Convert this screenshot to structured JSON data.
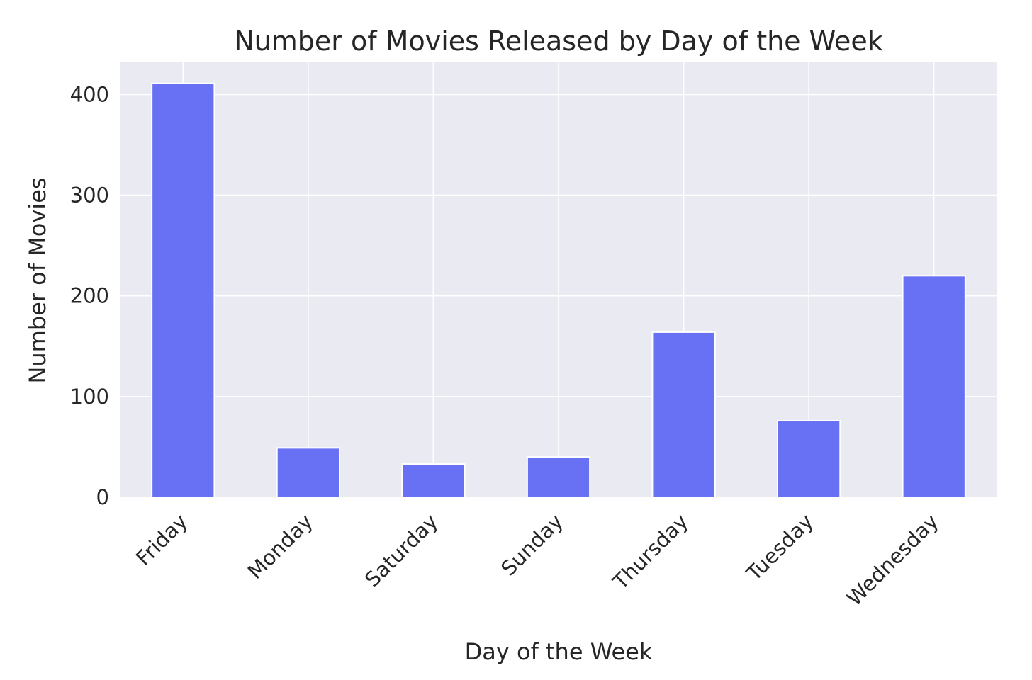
{
  "chart_data": {
    "type": "bar",
    "title": "Number of Movies Released by Day of the Week",
    "xlabel": "Day of the Week",
    "ylabel": "Number of Movies",
    "categories": [
      "Friday",
      "Monday",
      "Saturday",
      "Sunday",
      "Thursday",
      "Tuesday",
      "Wednesday"
    ],
    "values": [
      411,
      49,
      33,
      40,
      164,
      76,
      220
    ],
    "ylim": [
      0,
      432
    ],
    "yticks": [
      0,
      100,
      200,
      300,
      400
    ],
    "grid": true,
    "legend": "none",
    "colors": {
      "bar": "#6870F3",
      "plot_background": "#EAEAF2",
      "grid": "#FFFFFF",
      "text": "#262626"
    }
  }
}
